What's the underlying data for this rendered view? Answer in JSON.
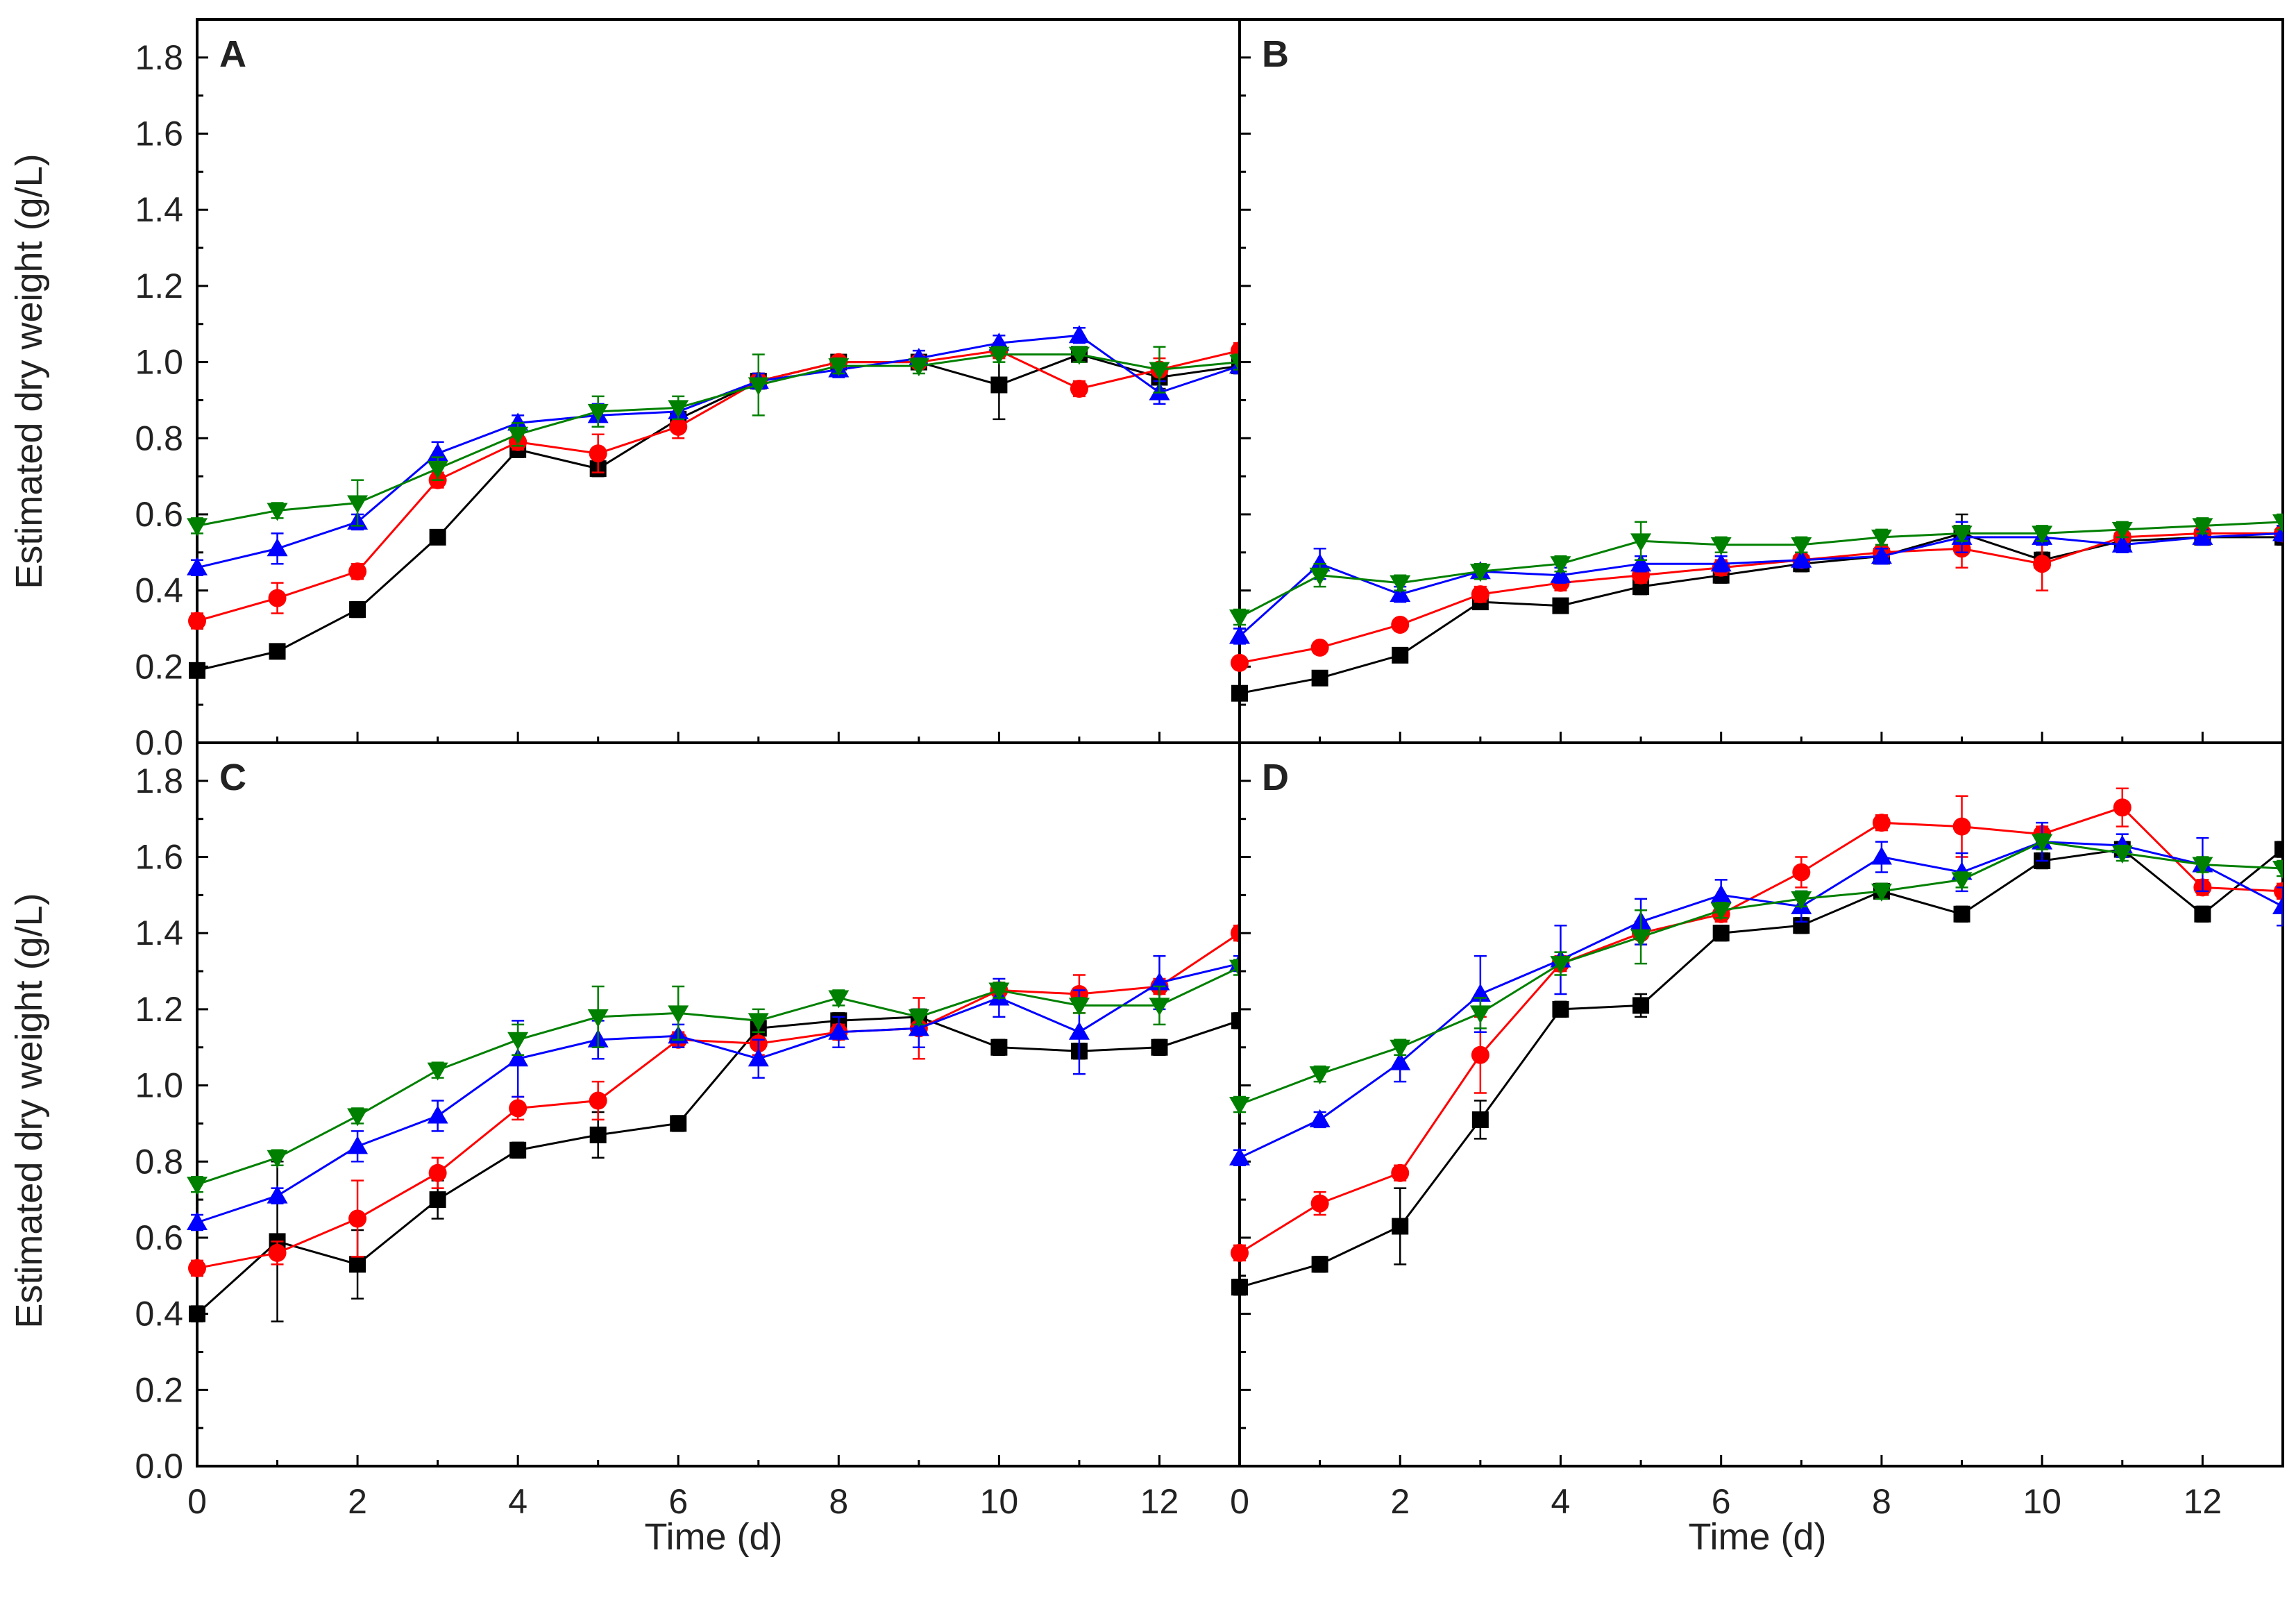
{
  "chart_data": {
    "type": "line",
    "layout": "2x2 panels sharing axes",
    "xlabel": "Time (d)",
    "ylabel": "Estimated dry weight (g/L)",
    "xlim": [
      0,
      13
    ],
    "ylim": [
      0.0,
      1.9
    ],
    "x_ticks": [
      0,
      2,
      4,
      6,
      8,
      10,
      12
    ],
    "x_tick_labels": [
      "0",
      "2",
      "4",
      "6",
      "8",
      "10",
      "12"
    ],
    "y_ticks": [
      0.0,
      0.2,
      0.4,
      0.6,
      0.8,
      1.0,
      1.2,
      1.4,
      1.6,
      1.8
    ],
    "y_tick_labels": [
      "0.0",
      "0.2",
      "0.4",
      "0.6",
      "0.8",
      "1.0",
      "1.2",
      "1.4",
      "1.6",
      "1.8"
    ],
    "grid": false,
    "legend": "none shown",
    "series_styles": [
      {
        "key": "black",
        "color": "#000000",
        "marker": "square"
      },
      {
        "key": "red",
        "color": "#ff0000",
        "marker": "circle"
      },
      {
        "key": "blue",
        "color": "#0000ff",
        "marker": "triangle-up"
      },
      {
        "key": "green",
        "color": "#008000",
        "marker": "triangle-down"
      }
    ],
    "x": [
      0,
      1,
      2,
      3,
      4,
      5,
      6,
      7,
      8,
      9,
      10,
      11,
      12,
      13
    ],
    "panels": [
      {
        "label": "A",
        "series": [
          {
            "style": "black",
            "values": [
              0.19,
              0.24,
              0.35,
              0.54,
              0.77,
              0.72,
              0.85,
              0.95,
              1.0,
              1.0,
              0.94,
              1.02,
              0.96,
              0.99
            ],
            "errors": [
              0.01,
              0.01,
              0.02,
              0.01,
              0.02,
              0.02,
              0.02,
              0.02,
              0.01,
              0.01,
              0.09,
              0.02,
              0.03,
              0.02
            ]
          },
          {
            "style": "red",
            "values": [
              0.32,
              0.38,
              0.45,
              0.69,
              0.79,
              0.76,
              0.83,
              0.95,
              1.0,
              1.0,
              1.03,
              0.93,
              0.98,
              1.03
            ],
            "errors": [
              0.02,
              0.04,
              0.02,
              0.02,
              0.02,
              0.05,
              0.03,
              0.02,
              0.01,
              0.01,
              0.02,
              0.02,
              0.03,
              0.02
            ]
          },
          {
            "style": "blue",
            "values": [
              0.46,
              0.51,
              0.58,
              0.76,
              0.84,
              0.86,
              0.87,
              0.95,
              0.98,
              1.01,
              1.05,
              1.07,
              0.92,
              0.99
            ],
            "errors": [
              0.02,
              0.04,
              0.02,
              0.03,
              0.02,
              0.03,
              0.02,
              0.02,
              0.02,
              0.02,
              0.02,
              0.02,
              0.03,
              0.02
            ]
          },
          {
            "style": "green",
            "values": [
              0.57,
              0.61,
              0.63,
              0.72,
              0.81,
              0.87,
              0.88,
              0.94,
              0.99,
              0.99,
              1.02,
              1.02,
              0.98,
              1.0
            ],
            "errors": [
              0.02,
              0.02,
              0.06,
              0.03,
              0.03,
              0.04,
              0.03,
              0.08,
              0.02,
              0.02,
              0.02,
              0.02,
              0.06,
              0.02
            ]
          }
        ]
      },
      {
        "label": "B",
        "series": [
          {
            "style": "black",
            "values": [
              0.13,
              0.17,
              0.23,
              0.37,
              0.36,
              0.41,
              0.44,
              0.47,
              0.49,
              0.55,
              0.48,
              0.53,
              0.54,
              0.54
            ],
            "errors": [
              0.01,
              0.01,
              0.01,
              0.01,
              0.01,
              0.02,
              0.02,
              0.02,
              0.02,
              0.05,
              0.02,
              0.02,
              0.02,
              0.02
            ]
          },
          {
            "style": "red",
            "values": [
              0.21,
              0.25,
              0.31,
              0.39,
              0.42,
              0.44,
              0.46,
              0.48,
              0.5,
              0.51,
              0.47,
              0.54,
              0.55,
              0.55
            ],
            "errors": [
              0.01,
              0.01,
              0.01,
              0.02,
              0.02,
              0.02,
              0.02,
              0.02,
              0.02,
              0.05,
              0.07,
              0.02,
              0.02,
              0.02
            ]
          },
          {
            "style": "blue",
            "values": [
              0.28,
              0.47,
              0.39,
              0.45,
              0.44,
              0.47,
              0.47,
              0.48,
              0.49,
              0.54,
              0.54,
              0.52,
              0.54,
              0.55
            ],
            "errors": [
              0.02,
              0.04,
              0.02,
              0.02,
              0.02,
              0.02,
              0.02,
              0.02,
              0.02,
              0.04,
              0.02,
              0.02,
              0.02,
              0.02
            ]
          },
          {
            "style": "green",
            "values": [
              0.33,
              0.44,
              0.42,
              0.45,
              0.47,
              0.53,
              0.52,
              0.52,
              0.54,
              0.55,
              0.55,
              0.56,
              0.57,
              0.58
            ],
            "errors": [
              0.02,
              0.03,
              0.02,
              0.02,
              0.02,
              0.05,
              0.02,
              0.02,
              0.02,
              0.02,
              0.02,
              0.02,
              0.02,
              0.02
            ]
          }
        ]
      },
      {
        "label": "C",
        "series": [
          {
            "style": "black",
            "values": [
              0.4,
              0.59,
              0.53,
              0.7,
              0.83,
              0.87,
              0.9,
              1.15,
              1.17,
              1.18,
              1.1,
              1.09,
              1.1,
              1.17
            ],
            "errors": [
              0.02,
              0.21,
              0.09,
              0.05,
              0.02,
              0.06,
              0.02,
              0.03,
              0.02,
              0.02,
              0.02,
              0.02,
              0.02,
              0.02
            ]
          },
          {
            "style": "red",
            "values": [
              0.52,
              0.56,
              0.65,
              0.77,
              0.94,
              0.96,
              1.12,
              1.11,
              1.14,
              1.15,
              1.25,
              1.24,
              1.26,
              1.4
            ],
            "errors": [
              0.02,
              0.03,
              0.1,
              0.04,
              0.03,
              0.05,
              0.02,
              0.03,
              0.02,
              0.08,
              0.02,
              0.05,
              0.02,
              0.02
            ]
          },
          {
            "style": "blue",
            "values": [
              0.64,
              0.71,
              0.84,
              0.92,
              1.07,
              1.12,
              1.13,
              1.07,
              1.14,
              1.15,
              1.23,
              1.14,
              1.27,
              1.32
            ],
            "errors": [
              0.02,
              0.02,
              0.04,
              0.04,
              0.1,
              0.05,
              0.03,
              0.05,
              0.04,
              0.05,
              0.05,
              0.11,
              0.07,
              0.02
            ]
          },
          {
            "style": "green",
            "values": [
              0.74,
              0.81,
              0.92,
              1.04,
              1.12,
              1.18,
              1.19,
              1.17,
              1.23,
              1.18,
              1.25,
              1.21,
              1.21,
              1.31
            ],
            "errors": [
              0.02,
              0.02,
              0.02,
              0.02,
              0.04,
              0.08,
              0.07,
              0.03,
              0.02,
              0.02,
              0.02,
              0.02,
              0.05,
              0.02
            ]
          }
        ]
      },
      {
        "label": "D",
        "series": [
          {
            "style": "black",
            "values": [
              0.47,
              0.53,
              0.63,
              0.91,
              1.2,
              1.21,
              1.4,
              1.42,
              1.51,
              1.45,
              1.59,
              1.62,
              1.45,
              1.62
            ],
            "errors": [
              0.02,
              0.02,
              0.1,
              0.05,
              0.02,
              0.03,
              0.02,
              0.02,
              0.02,
              0.02,
              0.02,
              0.02,
              0.02,
              0.02
            ]
          },
          {
            "style": "red",
            "values": [
              0.56,
              0.69,
              0.77,
              1.08,
              1.32,
              1.4,
              1.45,
              1.56,
              1.69,
              1.68,
              1.66,
              1.73,
              1.52,
              1.51
            ],
            "errors": [
              0.02,
              0.03,
              0.02,
              0.1,
              0.02,
              0.03,
              0.02,
              0.04,
              0.02,
              0.08,
              0.02,
              0.05,
              0.02,
              0.02
            ]
          },
          {
            "style": "blue",
            "values": [
              0.81,
              0.91,
              1.06,
              1.24,
              1.33,
              1.43,
              1.5,
              1.47,
              1.6,
              1.56,
              1.64,
              1.63,
              1.58,
              1.47
            ],
            "errors": [
              0.02,
              0.02,
              0.05,
              0.1,
              0.09,
              0.06,
              0.04,
              0.04,
              0.04,
              0.05,
              0.05,
              0.03,
              0.07,
              0.05
            ]
          },
          {
            "style": "green",
            "values": [
              0.95,
              1.03,
              1.1,
              1.19,
              1.32,
              1.39,
              1.46,
              1.49,
              1.51,
              1.54,
              1.64,
              1.61,
              1.58,
              1.57
            ],
            "errors": [
              0.02,
              0.02,
              0.02,
              0.04,
              0.03,
              0.07,
              0.02,
              0.02,
              0.02,
              0.02,
              0.02,
              0.02,
              0.02,
              0.02
            ]
          }
        ]
      }
    ]
  }
}
